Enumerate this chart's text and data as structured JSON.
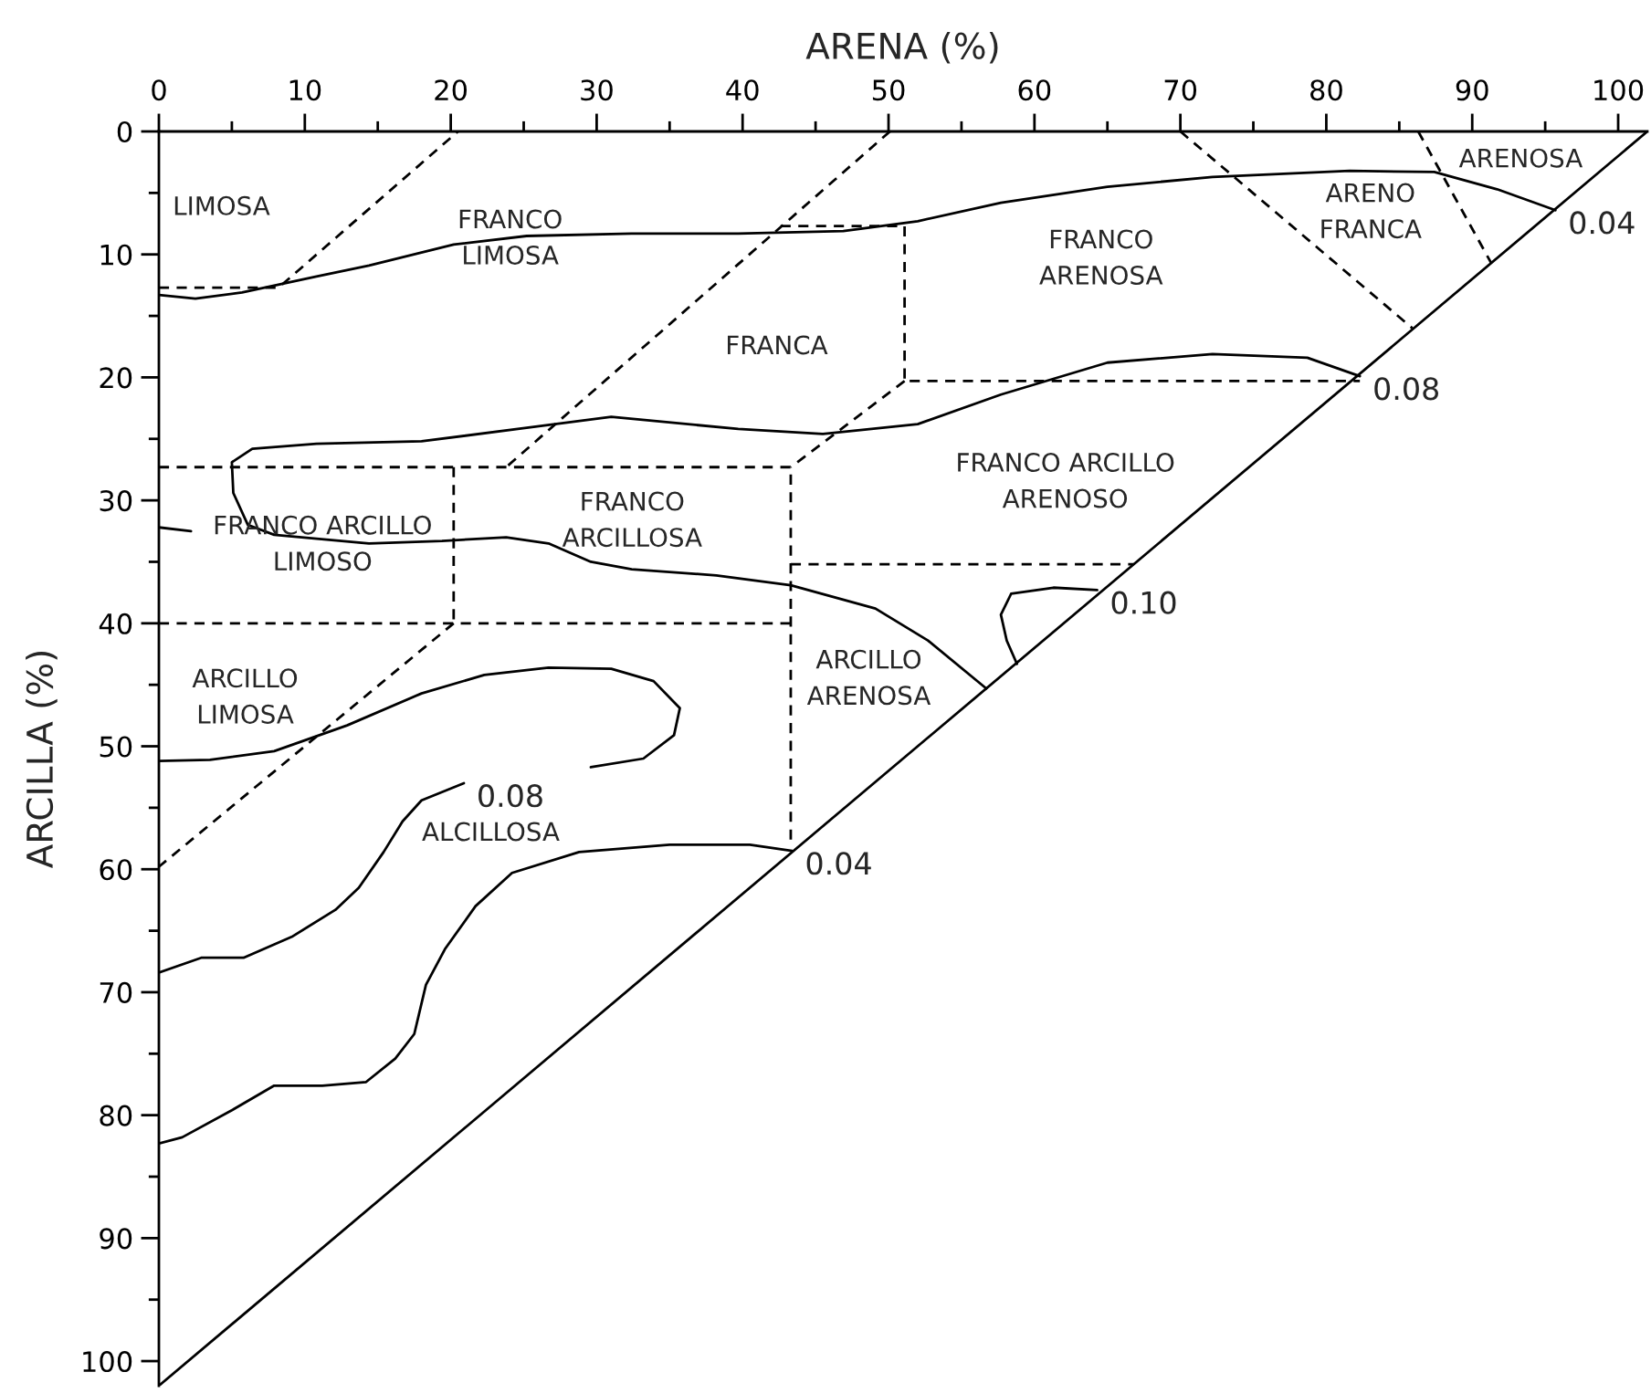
{
  "chart_data": {
    "type": "line",
    "xlabel": "ARENA (%)",
    "ylabel": "ARCILLA (%)",
    "xlim": [
      0,
      102
    ],
    "ylim": [
      102,
      0
    ],
    "xticks": [
      0,
      {
        "value": 5,
        "label": null
      },
      10,
      {
        "value": 15,
        "label": null
      },
      20,
      {
        "value": 25,
        "label": null
      },
      30,
      {
        "value": 35,
        "label": null
      },
      40,
      {
        "value": 45,
        "label": null
      },
      50,
      {
        "value": 55,
        "label": null
      },
      60,
      {
        "value": 65,
        "label": null
      },
      70,
      {
        "value": 75,
        "label": null
      },
      80,
      {
        "value": 85,
        "label": null
      },
      90,
      {
        "value": 95,
        "label": null
      },
      100
    ],
    "yticks": [
      0,
      {
        "value": 5,
        "label": null
      },
      10,
      {
        "value": 15,
        "label": null
      },
      20,
      {
        "value": 25,
        "label": null
      },
      30,
      {
        "value": 35,
        "label": null
      },
      40,
      {
        "value": 45,
        "label": null
      },
      50,
      {
        "value": 55,
        "label": null
      },
      60,
      {
        "value": 65,
        "label": null
      },
      70,
      {
        "value": 75,
        "label": null
      },
      80,
      {
        "value": 85,
        "label": null
      },
      90,
      {
        "value": 95,
        "label": null
      },
      100
    ],
    "grid": false,
    "legend": false,
    "series": [
      {
        "color": "#000000",
        "line_style": "solid",
        "x": [
          0,
          102
        ],
        "values": [
          102,
          0
        ]
      },
      {
        "color": "#000000",
        "line_style": "solid",
        "x": [
          0,
          2.5,
          5.7,
          10.8,
          14.4,
          20.2,
          25.2,
          32.4,
          39.7,
          46.9,
          52.0,
          57.7,
          65.0,
          72.2,
          81.6,
          87.4,
          91.7,
          95.7
        ],
        "values": [
          13.3,
          13.6,
          13.1,
          11.8,
          10.9,
          9.2,
          8.5,
          8.3,
          8.3,
          8.1,
          7.3,
          5.8,
          4.5,
          3.7,
          3.2,
          3.3,
          4.7,
          6.4
        ]
      },
      {
        "color": "#000000",
        "line_style": "solid",
        "x": [
          82.3,
          78.7,
          72.2,
          65.0,
          57.7,
          52.0,
          45.5,
          39.7,
          31.0,
          25.2,
          18.0,
          10.8,
          6.4,
          5.0,
          5.1,
          6.1,
          7.9,
          14.4,
          19.4,
          23.8,
          26.7,
          29.6,
          32.4,
          38.2,
          43.3,
          49.1,
          52.7,
          56.7
        ],
        "values": [
          19.9,
          18.4,
          18.1,
          18.8,
          21.4,
          23.8,
          24.6,
          24.2,
          23.2,
          24.1,
          25.2,
          25.4,
          25.8,
          26.9,
          29.4,
          32.0,
          32.8,
          33.5,
          33.3,
          33.0,
          33.5,
          35.0,
          35.6,
          36.1,
          36.9,
          38.8,
          41.4,
          45.3
        ]
      },
      {
        "color": "#000000",
        "line_style": "solid",
        "x": [
          0,
          2.2
        ],
        "values": [
          32.2,
          32.5
        ]
      },
      {
        "color": "#000000",
        "line_style": "solid",
        "x": [
          0,
          3.5,
          7.9,
          12.9,
          18.0,
          22.3,
          26.7,
          31.0,
          33.9,
          35.7,
          35.3,
          33.2,
          29.6
        ],
        "values": [
          51.2,
          51.1,
          50.4,
          48.3,
          45.7,
          44.2,
          43.6,
          43.7,
          44.7,
          46.9,
          49.1,
          51.0,
          51.7
        ]
      },
      {
        "color": "#000000",
        "line_style": "solid",
        "x": [
          20.9,
          18.0,
          16.7,
          15.4,
          13.7,
          12.1,
          9.1,
          5.8,
          2.9,
          0
        ],
        "values": [
          53.0,
          54.4,
          56.1,
          58.6,
          61.5,
          63.3,
          65.5,
          67.2,
          67.2,
          68.4
        ]
      },
      {
        "color": "#000000",
        "line_style": "solid",
        "x": [
          0,
          1.6,
          5.0,
          7.9,
          11.2,
          14.2,
          16.2,
          17.5,
          18.3,
          19.6,
          21.7,
          24.2,
          28.8,
          35.0,
          40.5,
          43.4
        ],
        "values": [
          82.3,
          81.8,
          79.6,
          77.6,
          77.6,
          77.3,
          75.4,
          73.4,
          69.4,
          66.5,
          63.0,
          60.3,
          58.6,
          58.0,
          58.0,
          58.5
        ]
      },
      {
        "color": "#000000",
        "line_style": "solid",
        "x": [
          64.3,
          61.3,
          58.4,
          57.7,
          58.1,
          58.8
        ],
        "values": [
          37.3,
          37.1,
          37.6,
          39.3,
          41.4,
          43.3
        ]
      },
      {
        "color": "#000000",
        "line_style": "dashed",
        "x": [
          0,
          8.2,
          20.5
        ],
        "values": [
          12.7,
          12.7,
          0
        ]
      },
      {
        "color": "#000000",
        "line_style": "dashed",
        "x": [
          50.1,
          23.8
        ],
        "values": [
          0,
          27.3
        ]
      },
      {
        "color": "#000000",
        "line_style": "dashed",
        "x": [
          42.6,
          51.1,
          51.1,
          82.3
        ],
        "values": [
          7.7,
          7.7,
          20.3,
          20.3
        ]
      },
      {
        "color": "#000000",
        "line_style": "dashed",
        "x": [
          51.1,
          43.3
        ],
        "values": [
          20.3,
          27.3
        ]
      },
      {
        "color": "#000000",
        "line_style": "dashed",
        "x": [
          0,
          43.3,
          43.3
        ],
        "values": [
          27.3,
          27.3,
          58.1
        ]
      },
      {
        "color": "#000000",
        "line_style": "dashed",
        "x": [
          20.2,
          20.2
        ],
        "values": [
          27.3,
          40.0
        ]
      },
      {
        "color": "#000000",
        "line_style": "dashed",
        "x": [
          0,
          43.3
        ],
        "values": [
          40.0,
          40.0
        ]
      },
      {
        "color": "#000000",
        "line_style": "dashed",
        "x": [
          20.2,
          0
        ],
        "values": [
          40.0,
          59.8
        ]
      },
      {
        "color": "#000000",
        "line_style": "dashed",
        "x": [
          43.3,
          66.8
        ],
        "values": [
          35.2,
          35.2
        ]
      },
      {
        "color": "#000000",
        "line_style": "dashed",
        "x": [
          70.0,
          85.9
        ],
        "values": [
          0,
          16.0
        ]
      },
      {
        "color": "#000000",
        "line_style": "dashed",
        "x": [
          86.3,
          91.3
        ],
        "values": [
          0,
          10.7
        ]
      }
    ],
    "annotations": [
      {
        "text": "0.04",
        "x": 95.7,
        "y": 6.4
      },
      {
        "text": "0.08",
        "x": 82.3,
        "y": 19.9
      },
      {
        "text": "0.10",
        "x": 64.3,
        "y": 37.3
      },
      {
        "text": "0.08",
        "x": 20.9,
        "y": 53.0
      },
      {
        "text": "0.04",
        "x": 43.4,
        "y": 58.5
      },
      "LIMOSA",
      "FRANCO\nLIMOSA",
      "FRANCA",
      "FRANCO\nARENOSA",
      "ARENO\nFRANCA",
      "ARENOSA",
      "FRANCO ARCILLO\nARENOSO",
      "FRANCO ARCILLO\nLIMOSO",
      "FRANCO\nARCILLOSA",
      "ARCILLO\nLIMOSA",
      "ARCILLO\nARENOSA",
      "ALCILLOSA"
    ]
  }
}
